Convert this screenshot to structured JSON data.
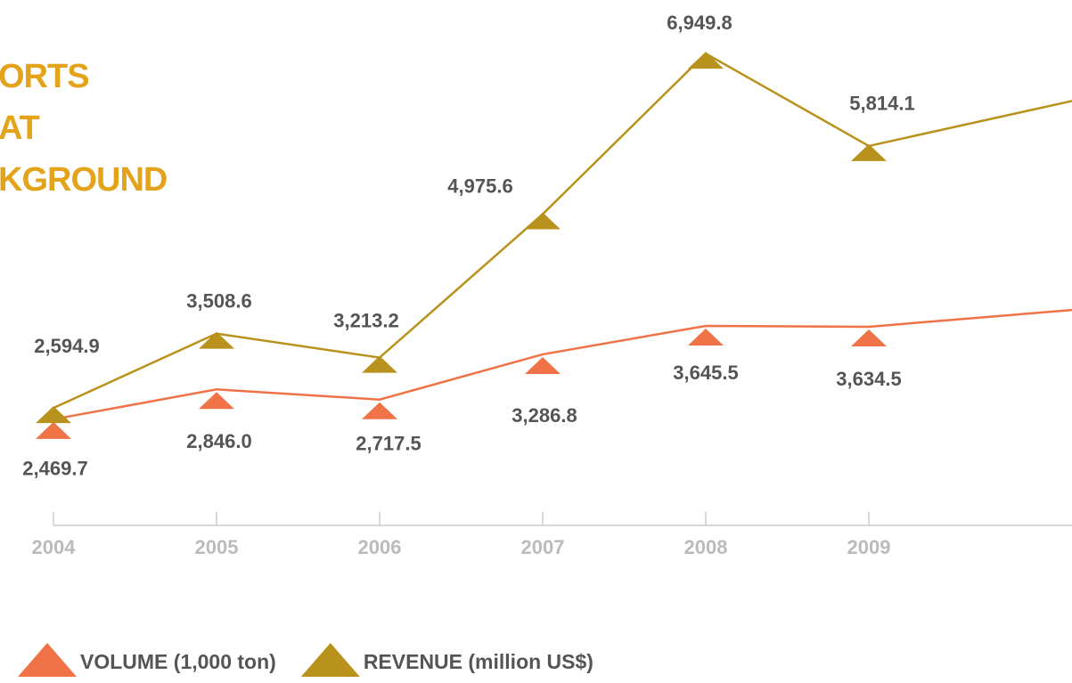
{
  "chart_data": {
    "type": "line",
    "title_lines": [
      "ORTS",
      "AT",
      "KGROUND"
    ],
    "categories": [
      "2004",
      "2005",
      "2006",
      "2007",
      "2008",
      "2009",
      null
    ],
    "series": [
      {
        "name": "VOLUME (1,000 ton)",
        "color": "#ef7347",
        "axis": "y",
        "values": [
          2469.7,
          2846.0,
          2717.5,
          3286.8,
          3645.5,
          3634.5,
          3880
        ],
        "value_labels": [
          "2,469.7",
          "2,846.0",
          "2,717.5",
          "3,286.8",
          "3,645.5",
          "3,634.5",
          null
        ]
      },
      {
        "name": "REVENUE (million US$)",
        "color": "#b8921c",
        "axis": "y2",
        "values": [
          2594.9,
          3508.6,
          3213.2,
          4975.6,
          6949.8,
          5814.1,
          6457
        ],
        "value_labels": [
          "2,594.9",
          "3,508.6",
          "3,213.2",
          "4,975.6",
          "6,949.8",
          "5,814.1",
          null
        ]
      }
    ],
    "ylim": [
      1470,
      7300
    ],
    "y2lim": [
      1480,
      7170
    ]
  }
}
